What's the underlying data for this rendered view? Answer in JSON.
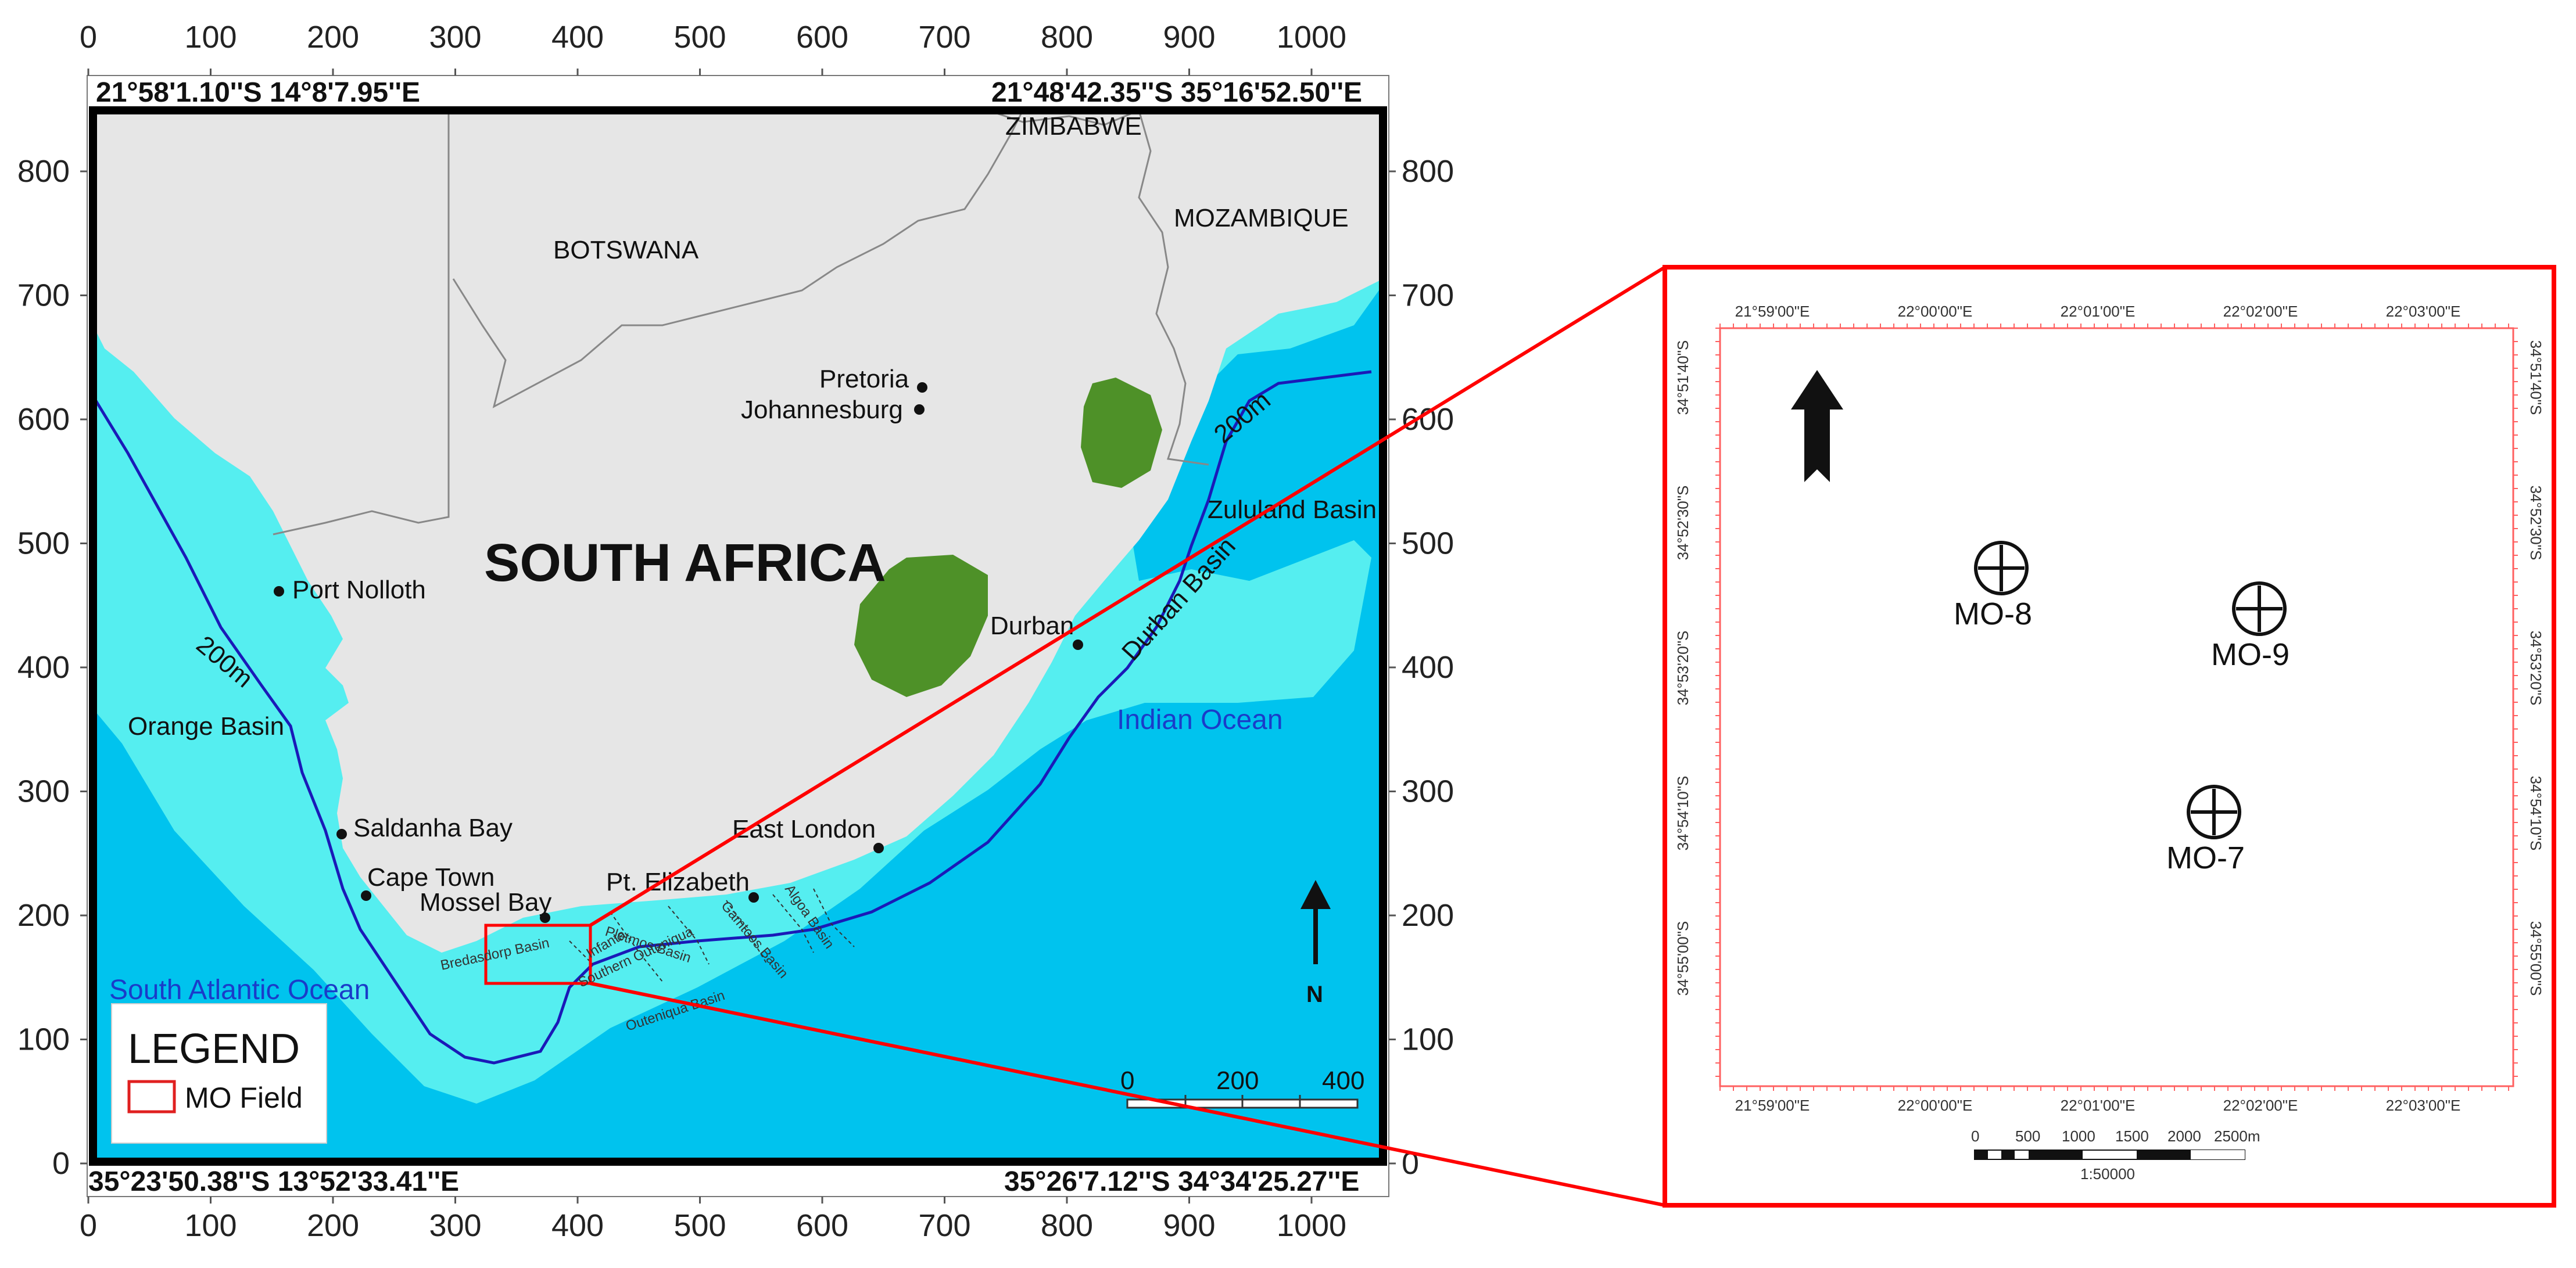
{
  "map_axes": {
    "x_ticks": [
      "0",
      "100",
      "200",
      "300",
      "400",
      "500",
      "600",
      "700",
      "800",
      "900",
      "1000"
    ],
    "y_ticks": [
      "0",
      "100",
      "200",
      "300",
      "400",
      "500",
      "600",
      "700",
      "800"
    ]
  },
  "corner_coords": {
    "top_left": "21°58'1.10''S 14°8'7.95''E",
    "top_right": "21°48'42.35''S 35°16'52.50''E",
    "bottom_left": "35°23'50.38''S 13°52'33.41''E",
    "bottom_right": "35°26'7.12''S 34°34'25.27''E"
  },
  "countries": {
    "zimbabwe": "ZIMBABWE",
    "botswana": "BOTSWANA",
    "mozambique": "MOZAMBIQUE",
    "south_africa": "SOUTH AFRICA"
  },
  "cities": {
    "pretoria": "Pretoria",
    "johannesburg": "Johannesburg",
    "port_nolloth": "Port Nolloth",
    "durban": "Durban",
    "saldanha_bay": "Saldanha Bay",
    "cape_town": "Cape Town",
    "mossel_bay": "Mossel Bay",
    "pt_elizabeth": "Pt. Elizabeth",
    "east_london": "East London"
  },
  "basins": {
    "zululand": "Zululand Basin",
    "durban": "Durban Basin",
    "orange": "Orange Basin",
    "bredasdorp": "Bredasdorp Basin",
    "pletmos": "Pletmos Basin",
    "gamtoos": "Gamtoos Basin",
    "algoa": "Algoa Basin",
    "outeniqua": "Outeniqua Basin",
    "infanta": "Infanta",
    "southern_outeniqua": "Southern Outeniqua"
  },
  "oceans": {
    "indian": "Indian Ocean",
    "south_atlantic": "South Atlantic Ocean"
  },
  "isobath_label": "200m",
  "north_label": "N",
  "scale_bar": {
    "ticks": [
      "0",
      "200",
      "400"
    ]
  },
  "legend": {
    "title": "LEGEND",
    "item": "MO Field",
    "item_color": "#e02020"
  },
  "colors": {
    "land": "#e6e6e6",
    "shelf": "#55eef0",
    "ocean": "#00c3ee",
    "isobath": "#1a1ab8",
    "highlight": "#ff0000",
    "enclave": "#4e9128"
  },
  "inset": {
    "top_ticks": [
      "21°59'00\"E",
      "22°00'00\"E",
      "22°01'00\"E",
      "22°02'00\"E",
      "22°03'00\"E"
    ],
    "bottom_ticks": [
      "21°59'00\"E",
      "22°00'00\"E",
      "22°01'00\"E",
      "22°02'00\"E",
      "22°03'00\"E"
    ],
    "left_ticks": [
      "34°51'40\"S",
      "34°52'30\"S",
      "34°53'20\"S",
      "34°54'10\"S",
      "34°55'00\"S"
    ],
    "right_ticks": [
      "34°51'40\"S",
      "34°52'30\"S",
      "34°53'20\"S",
      "34°54'10\"S",
      "34°55'00\"S"
    ],
    "wells": [
      "MO-8",
      "MO-9",
      "MO-7"
    ],
    "scale_ticks": [
      "0",
      "500",
      "1000",
      "1500",
      "2000",
      "2500m"
    ],
    "scale_ratio": "1:50000"
  }
}
